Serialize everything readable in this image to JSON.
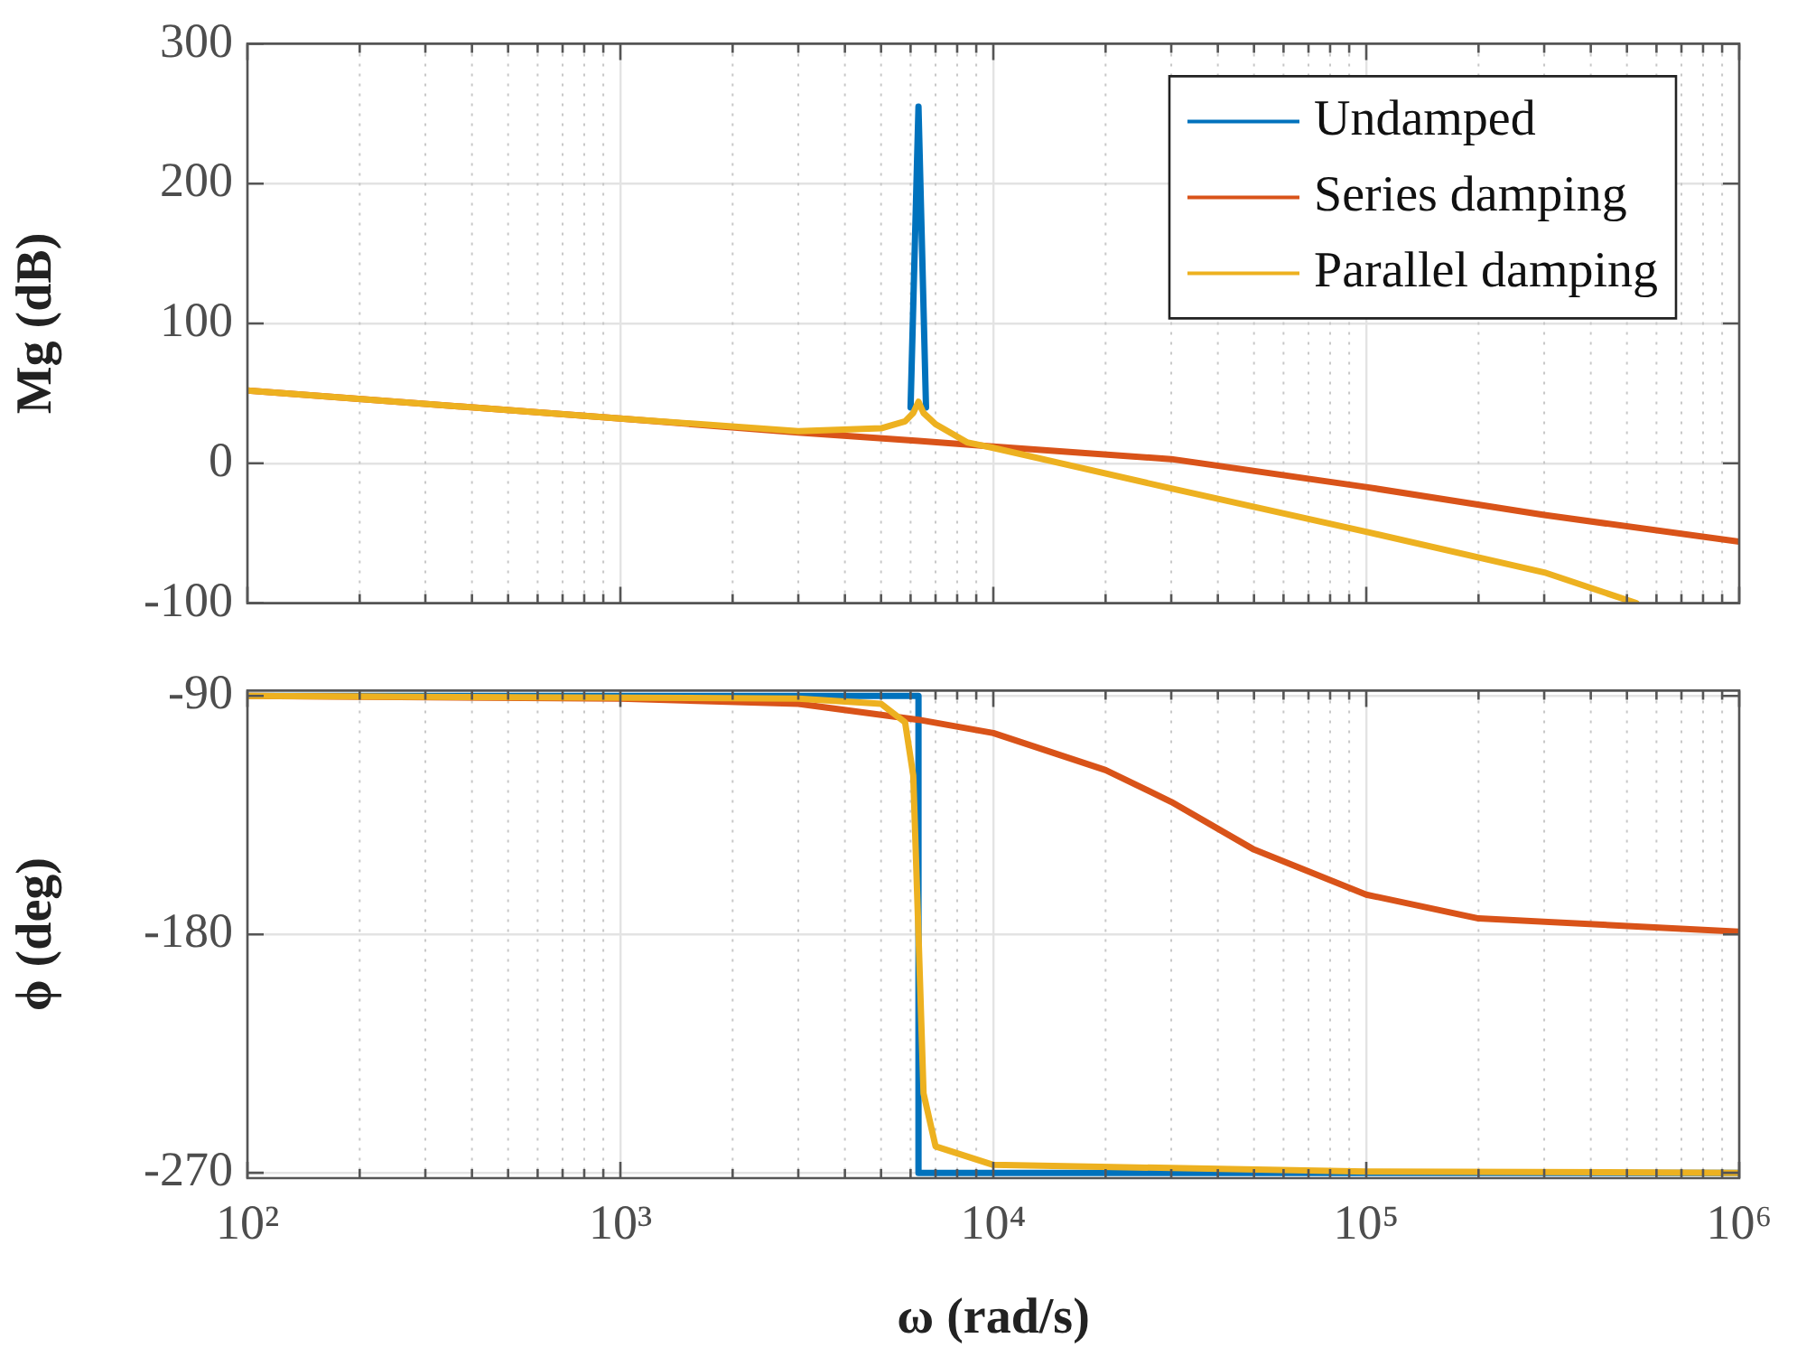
{
  "chart_data": [
    {
      "type": "line",
      "ylabel": "Mg (dB)",
      "log": "x",
      "grid": true,
      "legend": "top right",
      "tick_labels": "y",
      "xlim": [
        100,
        1000000
      ],
      "xticks": [
        {
          "value": 100,
          "label": null
        },
        {
          "value": 1000,
          "label": null
        },
        {
          "value": 10000,
          "label": null
        },
        {
          "value": 100000,
          "label": null
        },
        {
          "value": 1000000,
          "label": null
        }
      ],
      "ylim": [
        -100,
        300
      ],
      "yticks": [
        -100,
        0,
        100,
        200,
        300
      ],
      "series": [
        {
          "name": "Undamped",
          "color": "#0072bd",
          "x": [
            6000,
            6300,
            6600
          ],
          "values": [
            40,
            255,
            40
          ]
        },
        {
          "name": "Series damping",
          "color": "#d95319",
          "x": [
            100,
            1000,
            3000,
            6300,
            10000,
            30000,
            100000,
            300000,
            1000000
          ],
          "values": [
            52,
            32,
            22,
            16,
            12,
            3,
            -17,
            -37,
            -56
          ]
        },
        {
          "name": "Parallel damping",
          "color": "#edb120",
          "x": [
            100,
            1000,
            3000,
            5000,
            5800,
            6100,
            6300,
            6500,
            7000,
            8500,
            10000,
            30000,
            100000,
            300000,
            530000
          ],
          "values": [
            52,
            32,
            23,
            25,
            30,
            36,
            44,
            36,
            28,
            15,
            11,
            -18,
            -49,
            -78,
            -100
          ]
        }
      ]
    },
    {
      "type": "line",
      "xlabel": "ω (rad/s)",
      "ylabel": "ϕ (deg)",
      "log": "x",
      "grid": true,
      "xlim": [
        100,
        1000000
      ],
      "xticks": [
        {
          "value": 100,
          "label": "10²"
        },
        {
          "value": 1000,
          "label": "10³"
        },
        {
          "value": 10000,
          "label": "10⁴"
        },
        {
          "value": 100000,
          "label": "10⁵"
        },
        {
          "value": 1000000,
          "label": "10⁶"
        }
      ],
      "ylim": [
        -272,
        -88
      ],
      "yticks": [
        -270,
        -180,
        -90
      ],
      "series": [
        {
          "color": "#0072bd",
          "x": [
            100,
            6300,
            6300,
            1000000
          ],
          "values": [
            -90,
            -90,
            -270,
            -270
          ]
        },
        {
          "color": "#d95319",
          "x": [
            100,
            1000,
            3000,
            6300,
            10000,
            20000,
            30000,
            50000,
            100000,
            200000,
            1000000
          ],
          "values": [
            -90,
            -91,
            -93,
            -99,
            -104,
            -118,
            -130,
            -148,
            -165,
            -174,
            -179
          ]
        },
        {
          "color": "#edb120",
          "x": [
            100,
            3000,
            5000,
            5800,
            6100,
            6300,
            6500,
            7000,
            10000,
            100000,
            1000000
          ],
          "values": [
            -90,
            -91,
            -93,
            -100,
            -120,
            -180,
            -240,
            -260,
            -267,
            -269.5,
            -270
          ]
        }
      ]
    }
  ]
}
